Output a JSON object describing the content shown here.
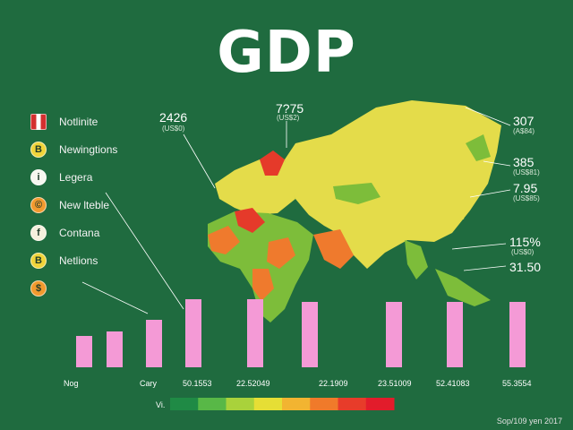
{
  "title": "GDP",
  "legend": [
    {
      "label": "Notlinite",
      "icon": "flag",
      "color": "#d32f2f"
    },
    {
      "label": "Newingtions",
      "icon": "B",
      "color": "#f0d43a"
    },
    {
      "label": "Legera",
      "icon": "i",
      "color": "#f7f7f0"
    },
    {
      "label": "New lteble",
      "icon": "©",
      "color": "#f29a2e"
    },
    {
      "label": "Contana",
      "icon": "f",
      "color": "#f5f0dd"
    },
    {
      "label": "Netlions",
      "icon": "B",
      "color": "#f0d43a"
    },
    {
      "label": "",
      "icon": "$",
      "color": "#f29a2e"
    }
  ],
  "callouts": [
    {
      "value": "2426",
      "sub": "(US$0)"
    },
    {
      "value": "7?75",
      "sub": "(US$2)"
    },
    {
      "value": "307",
      "sub": "(A$84)"
    },
    {
      "value": "385",
      "sub": "(US$81)"
    },
    {
      "value": "7.95",
      "sub": "(US$85)"
    },
    {
      "value": "115%",
      "sub": "(US$0)"
    },
    {
      "value": "31.50",
      "sub": ""
    }
  ],
  "chart_data": {
    "type": "bar",
    "categories": [
      "Nog",
      "Cary",
      "50.1553",
      "22.52049",
      "",
      "22.1909",
      "23.51009",
      "52.41083",
      "",
      "55.3554"
    ],
    "values": [
      35,
      40,
      53,
      76,
      76,
      73,
      73,
      73,
      73,
      73
    ],
    "color": "#f49ad6",
    "ylim": [
      0,
      100
    ]
  },
  "scale": {
    "label": "Vi.",
    "colors": [
      "#1f8a45",
      "#58b847",
      "#a9d23b",
      "#e6de35",
      "#f2b431",
      "#f07a2a",
      "#e73c2a",
      "#e21c2b"
    ]
  },
  "source": "Sop/109 yen 2017",
  "colors": {
    "background": "#1f6b3f",
    "map_yellow": "#e4dc4a",
    "map_green": "#7dbd3a",
    "map_orange": "#ef7a2d",
    "map_red": "#e53a2a"
  }
}
